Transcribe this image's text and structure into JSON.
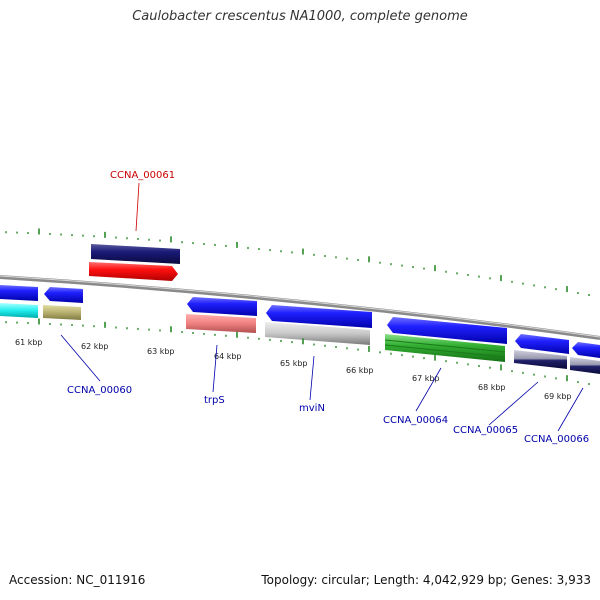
{
  "title": "Caulobacter crescentus NA1000, complete genome",
  "footer": {
    "accession": "Accession: NC_011916",
    "topology": "Topology: circular; Length: 4,042,929 bp; Genes: 3,933"
  },
  "kbp_labels": [
    "61 kbp",
    "62 kbp",
    "63 kbp",
    "64 kbp",
    "65 kbp",
    "66 kbp",
    "67 kbp",
    "68 kbp",
    "69 kbp"
  ],
  "gene_labels": {
    "ccna_00061": "CCNA_00061",
    "ccna_00060": "CCNA_00060",
    "trpS": "trpS",
    "mviN": "mviN",
    "ccna_00064": "CCNA_00064",
    "ccna_00065": "CCNA_00065",
    "ccna_00066": "CCNA_00066"
  },
  "colors": {
    "red_label": "#cc0000",
    "blue_label": "#0000aa",
    "tick_green": "#2a8a2a",
    "backbone": "#888888"
  }
}
